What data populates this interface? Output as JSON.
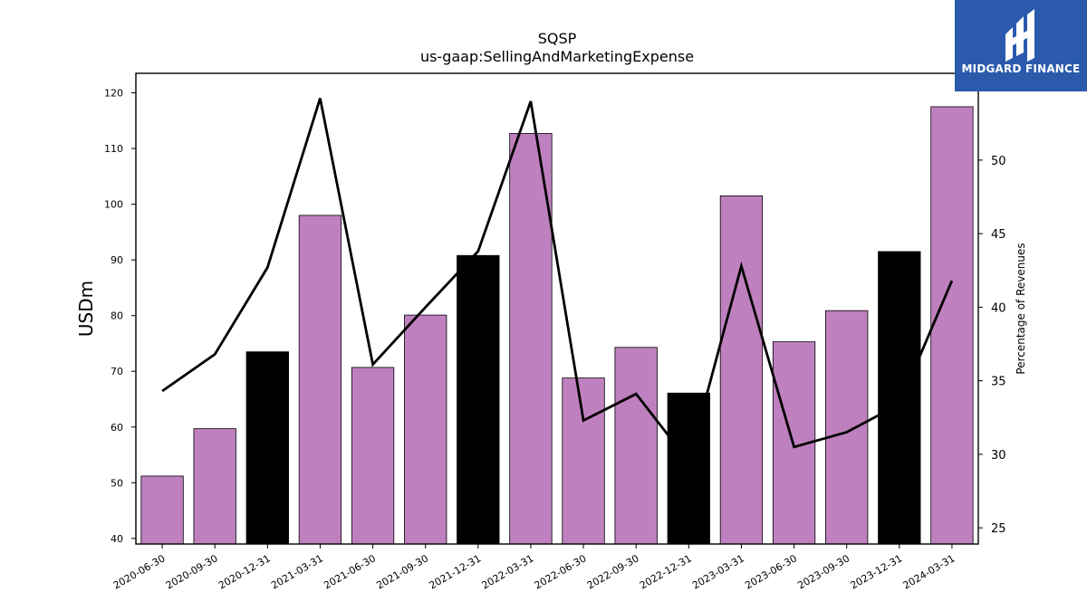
{
  "chart_data": {
    "type": "bar",
    "title": "SQSP",
    "subtitle": "us-gaap:SellingAndMarketingExpense",
    "ylabel": "USDm",
    "y2label": "Percentage of Revenues",
    "categories": [
      "2020-06-30",
      "2020-09-30",
      "2020-12-31",
      "2021-03-31",
      "2021-06-30",
      "2021-09-30",
      "2021-12-31",
      "2022-03-31",
      "2022-06-30",
      "2022-09-30",
      "2022-12-31",
      "2023-03-31",
      "2023-06-30",
      "2023-09-30",
      "2023-12-31",
      "2024-03-31"
    ],
    "values": [
      51.2,
      59.7,
      73.5,
      98.0,
      70.7,
      80.1,
      90.8,
      112.7,
      68.8,
      74.3,
      66.1,
      101.5,
      75.3,
      80.9,
      91.5,
      117.5
    ],
    "highlight": [
      false,
      false,
      true,
      false,
      false,
      false,
      true,
      false,
      false,
      false,
      true,
      false,
      false,
      false,
      true,
      false
    ],
    "series": [
      {
        "values": [
          51.2,
          59.7,
          73.5,
          98.0,
          70.7,
          80.1,
          90.8,
          112.7,
          68.8,
          74.3,
          66.1,
          101.5,
          75.3,
          80.9,
          91.5,
          117.5
        ],
        "type": "bar",
        "axis": "left"
      },
      {
        "values": [
          34.3,
          36.8,
          42.7,
          54.2,
          36.1,
          40.0,
          43.8,
          54.0,
          32.3,
          34.1,
          29.5,
          42.8,
          30.5,
          31.5,
          33.4,
          41.8
        ],
        "type": "line",
        "axis": "right"
      }
    ],
    "ylim": [
      39,
      123.5
    ],
    "y2lim": [
      23.9,
      55.9
    ],
    "yticks": [
      40,
      50,
      60,
      70,
      80,
      90,
      100,
      110,
      120
    ],
    "y2ticks": [
      25,
      30,
      35,
      40,
      45,
      50
    ],
    "bar_color": "#bf80bf",
    "highlight_color": "#000000",
    "line_color": "#000000",
    "grid": false
  },
  "logo": {
    "text": "MIDGARD FINANCE",
    "color": "#2b5aad"
  }
}
